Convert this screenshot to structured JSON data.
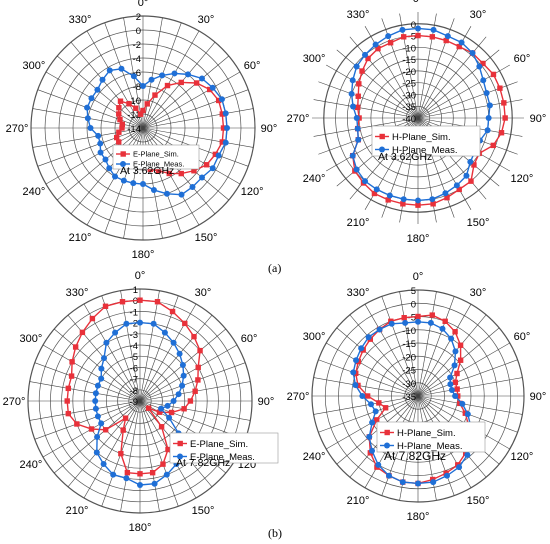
{
  "captions": [
    "(a)",
    "(b)"
  ],
  "chart_data": [
    {
      "type": "polar-line",
      "title": "",
      "annotation": "At 3.62GHz",
      "r_ticks": [
        2,
        0,
        -2,
        -4,
        -6,
        -8,
        -10,
        -12,
        -14
      ],
      "r_min": -14,
      "r_max": 2,
      "angle_ticks": [
        0,
        30,
        60,
        90,
        120,
        150,
        180,
        210,
        240,
        270,
        300,
        330
      ],
      "angle_labels": [
        "0°",
        "30°",
        "60°",
        "90°",
        "120°",
        "150°",
        "180°",
        "210°",
        "240°",
        "270°",
        "300°",
        "330°"
      ],
      "legend_placement": "center",
      "series": [
        {
          "name": "E-Plane_Sim.",
          "color": "#e8313a",
          "marker": "square",
          "theta": [
            0,
            10,
            20,
            30,
            40,
            50,
            60,
            70,
            80,
            90,
            100,
            110,
            120,
            130,
            140,
            150,
            160,
            170,
            180,
            190,
            200,
            210,
            220,
            230,
            240,
            250,
            260,
            270,
            280,
            290,
            300,
            310,
            320,
            330,
            340,
            350
          ],
          "r": [
            -11.5,
            -10.5,
            -9,
            -7,
            -5.5,
            -4,
            -3,
            -2.5,
            -2.5,
            -2.5,
            -2.5,
            -3,
            -3.5,
            -4.5,
            -5.5,
            -6.5,
            -7.5,
            -8,
            -8.5,
            -9,
            -9,
            -9,
            -9,
            -9.5,
            -10,
            -10,
            -10.5,
            -11,
            -11,
            -10.5,
            -10,
            -9.5,
            -9,
            -10,
            -11,
            -12
          ]
        },
        {
          "name": "E-Plane_Meas.",
          "color": "#1f6fd6",
          "marker": "circle",
          "theta": [
            0,
            10,
            20,
            30,
            40,
            50,
            60,
            70,
            80,
            90,
            100,
            110,
            120,
            130,
            140,
            150,
            160,
            170,
            180,
            190,
            200,
            210,
            220,
            230,
            240,
            250,
            260,
            270,
            280,
            290,
            300,
            310,
            320,
            330,
            340,
            350
          ],
          "r": [
            -8,
            -7,
            -6,
            -5,
            -4,
            -3,
            -2.5,
            -2,
            -2,
            -2,
            -2,
            -2.5,
            -2.5,
            -3,
            -3,
            -3,
            -4,
            -5,
            -6,
            -6,
            -6,
            -6,
            -6.5,
            -7,
            -7,
            -7.5,
            -7.5,
            -6.5,
            -6,
            -5.5,
            -5.5,
            -5.5,
            -5,
            -4.5,
            -5,
            -6.5
          ]
        }
      ]
    },
    {
      "type": "polar-line",
      "title": "",
      "annotation": "At 3.62GHz",
      "r_ticks": [
        0,
        -5,
        -10,
        -15,
        -20,
        -25,
        -30,
        -35,
        -40
      ],
      "r_min": -40,
      "r_max": 5,
      "angle_ticks": [
        0,
        30,
        60,
        90,
        120,
        150,
        180,
        210,
        240,
        270,
        300,
        330
      ],
      "angle_labels": [
        "0°",
        "30°",
        "60°",
        "90°",
        "120°",
        "150°",
        "180°",
        "210°",
        "240°",
        "270°",
        "300°",
        "330°"
      ],
      "legend_placement": "center",
      "series": [
        {
          "name": "H-Plane_Sim.",
          "color": "#e8313a",
          "marker": "square",
          "theta": [
            0,
            10,
            20,
            30,
            40,
            50,
            60,
            70,
            80,
            90,
            100,
            110,
            120,
            130,
            140,
            150,
            160,
            170,
            180,
            190,
            200,
            210,
            220,
            230,
            240,
            250,
            260,
            270,
            280,
            290,
            300,
            310,
            320,
            330,
            340,
            350
          ],
          "r": [
            -5,
            -5,
            -5,
            -5,
            -4,
            -4,
            -3,
            -3,
            -3,
            -3,
            -4,
            -6,
            -10,
            -9,
            -5,
            -5,
            -4,
            -3,
            -3,
            -3,
            -3,
            -3,
            -4,
            -5,
            -8,
            -13,
            -14,
            -15,
            -14,
            -13,
            -11,
            -9,
            -7,
            -6,
            -6,
            -5
          ]
        },
        {
          "name": "H-Plane_Meas.",
          "color": "#1f6fd6",
          "marker": "circle",
          "theta": [
            0,
            10,
            20,
            30,
            40,
            50,
            60,
            70,
            80,
            90,
            100,
            110,
            120,
            130,
            140,
            150,
            160,
            170,
            180,
            190,
            200,
            210,
            220,
            230,
            240,
            250,
            260,
            270,
            280,
            290,
            300,
            310,
            320,
            330,
            340,
            350
          ],
          "r": [
            -2,
            -2,
            -3,
            -3,
            -4,
            -6,
            -8,
            -9,
            -9,
            -10,
            -10,
            -12,
            -12,
            -11,
            -8,
            -7,
            -6,
            -5,
            -5,
            -5,
            -5,
            -5,
            -5,
            -6,
            -8,
            -13,
            -14,
            -14,
            -12,
            -10,
            -8,
            -6,
            -5,
            -4,
            -3,
            -2
          ]
        }
      ]
    },
    {
      "type": "polar-line",
      "title": "",
      "annotation": "At 7.82GHz",
      "r_ticks": [
        1,
        0,
        -1,
        -2,
        -3,
        -4,
        -5,
        -6,
        -7,
        -8,
        -9
      ],
      "r_min": -9,
      "r_max": 1,
      "angle_ticks": [
        0,
        30,
        60,
        90,
        120,
        150,
        180,
        210,
        240,
        270,
        300,
        330
      ],
      "angle_labels": [
        "0°",
        "30°",
        "60°",
        "90°",
        "120°",
        "150°",
        "180°",
        "210°",
        "240°",
        "270°",
        "300°",
        "330°"
      ],
      "legend_placement": "bottom-right",
      "series": [
        {
          "name": "E-Plane_Sim.",
          "color": "#e8313a",
          "marker": "square",
          "theta": [
            0,
            10,
            20,
            30,
            40,
            50,
            60,
            70,
            80,
            90,
            100,
            110,
            120,
            130,
            140,
            150,
            160,
            170,
            180,
            190,
            200,
            210,
            220,
            230,
            240,
            250,
            260,
            270,
            280,
            290,
            300,
            310,
            320,
            330,
            340,
            350
          ],
          "r": [
            0,
            0,
            -0.5,
            -1,
            -1.5,
            -2,
            -3,
            -3.5,
            -4,
            -4.5,
            -5,
            -6,
            -7,
            -8,
            -6,
            -4,
            -3,
            -2.5,
            -2.5,
            -2.5,
            -4,
            -6,
            -7,
            -5,
            -4,
            -3,
            -2.5,
            -2.5,
            -2.5,
            -2.5,
            -2,
            -1.5,
            -1,
            -0.5,
            0,
            0
          ]
        },
        {
          "name": "E-Plane_Meas.",
          "color": "#1f6fd6",
          "marker": "circle",
          "theta": [
            0,
            10,
            20,
            30,
            40,
            50,
            60,
            70,
            80,
            90,
            100,
            110,
            120,
            130,
            140,
            150,
            160,
            170,
            180,
            190,
            200,
            210,
            220,
            230,
            240,
            250,
            260,
            270,
            280,
            290,
            300,
            310,
            320,
            330,
            340,
            350
          ],
          "r": [
            -2,
            -2,
            -2.5,
            -3,
            -3.5,
            -4,
            -4.5,
            -5,
            -5.5,
            -6,
            -6.5,
            -7,
            -6,
            -4.5,
            -3,
            -2.5,
            -2,
            -1.5,
            -1.5,
            -2,
            -2,
            -2.5,
            -3,
            -4,
            -5,
            -5,
            -5,
            -5,
            -5,
            -5,
            -5,
            -4.5,
            -4,
            -3,
            -2.5,
            -2
          ]
        }
      ]
    },
    {
      "type": "polar-line",
      "title": "",
      "annotation": "At 7.82GHz",
      "r_ticks": [
        5,
        0,
        -5,
        -10,
        -15,
        -20,
        -25,
        -30,
        -35
      ],
      "r_min": -35,
      "r_max": 5,
      "angle_ticks": [
        0,
        30,
        60,
        90,
        120,
        150,
        180,
        210,
        240,
        270,
        300,
        330
      ],
      "angle_labels": [
        "0°",
        "30°",
        "60°",
        "90°",
        "120°",
        "150°",
        "180°",
        "210°",
        "240°",
        "270°",
        "300°",
        "330°"
      ],
      "legend_placement": "bottom-right",
      "series": [
        {
          "name": "H-Plane_Sim.",
          "color": "#e8313a",
          "marker": "square",
          "theta": [
            0,
            10,
            20,
            30,
            40,
            50,
            60,
            70,
            80,
            90,
            100,
            110,
            120,
            130,
            140,
            150,
            160,
            170,
            180,
            190,
            200,
            210,
            220,
            230,
            240,
            250,
            260,
            270,
            280,
            290,
            300,
            310,
            320,
            330,
            340,
            350
          ],
          "r": [
            -5,
            -4,
            -5,
            -7,
            -10,
            -14,
            -18,
            -20,
            -20,
            -20,
            -19,
            -16,
            -13,
            -10,
            -7,
            -5,
            -4,
            -3,
            -2,
            -2,
            -3,
            -4,
            -7,
            -11,
            -17,
            -22,
            -20,
            -16,
            -12,
            -10,
            -9,
            -8,
            -7,
            -6,
            -5,
            -5
          ]
        },
        {
          "name": "H-Plane_Meas.",
          "color": "#1f6fd6",
          "marker": "circle",
          "theta": [
            0,
            10,
            20,
            30,
            40,
            50,
            60,
            70,
            80,
            90,
            100,
            110,
            120,
            130,
            140,
            150,
            160,
            170,
            180,
            190,
            200,
            210,
            220,
            230,
            240,
            250,
            260,
            270,
            280,
            290,
            300,
            310,
            320,
            330,
            340,
            350
          ],
          "r": [
            -7,
            -7,
            -8,
            -10,
            -13,
            -17,
            -21,
            -22,
            -22,
            -21,
            -18,
            -15,
            -12,
            -9,
            -6,
            -4,
            -3,
            -2,
            -2,
            -2,
            -3,
            -5,
            -8,
            -11,
            -15,
            -18,
            -17,
            -14,
            -11,
            -9,
            -8,
            -7,
            -6,
            -6,
            -6,
            -7
          ]
        }
      ]
    }
  ]
}
